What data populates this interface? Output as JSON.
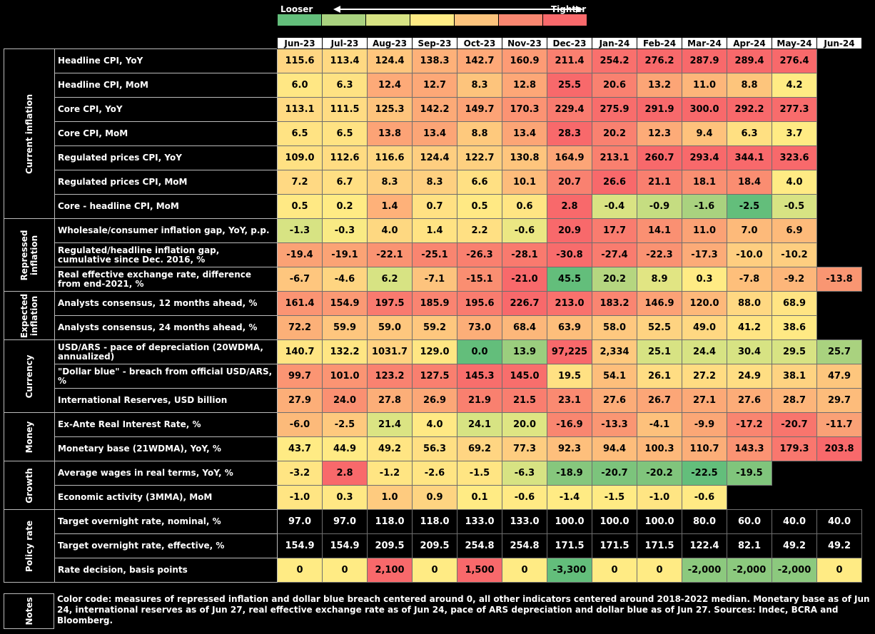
{
  "legend": {
    "looser_label": "Looser",
    "tighter_label": "Tighter",
    "colors": [
      "#63BE7B",
      "#A9D27F",
      "#D7E383",
      "#FFEB84",
      "#FCC37C",
      "#F98770",
      "#F8696B"
    ]
  },
  "months": [
    "Jun-23",
    "Jul-23",
    "Aug-23",
    "Sep-23",
    "Oct-23",
    "Nov-23",
    "Dec-23",
    "Jan-24",
    "Feb-24",
    "Mar-24",
    "Apr-24",
    "May-24",
    "Jun-24"
  ],
  "groups": [
    {
      "name": "Current inflation",
      "rows": [
        {
          "label": "Headline CPI, YoY",
          "values": [
            "115.6",
            "113.4",
            "124.4",
            "138.3",
            "142.7",
            "160.9",
            "211.4",
            "254.2",
            "276.2",
            "287.9",
            "289.4",
            "276.4",
            ""
          ],
          "colors": [
            "#FFD682",
            "#FFD982",
            "#FFC67D",
            "#FEB179",
            "#FEA978",
            "#FD9B75",
            "#FA8070",
            "#F9706D",
            "#F8696B",
            "#F8696B",
            "#F8696B",
            "#F8696B",
            "#000000"
          ]
        },
        {
          "label": "Headline CPI, MoM",
          "values": [
            "6.0",
            "6.3",
            "12.4",
            "12.7",
            "8.3",
            "12.8",
            "25.5",
            "20.6",
            "13.2",
            "11.0",
            "8.8",
            "4.2",
            ""
          ],
          "colors": [
            "#FFE784",
            "#FEE283",
            "#FDAA78",
            "#FDA877",
            "#FDC47C",
            "#FDA777",
            "#F8696B",
            "#F98170",
            "#FCA576",
            "#FDB67A",
            "#FDC57C",
            "#FFEB84",
            "#000000"
          ]
        },
        {
          "label": "Core CPI, YoY",
          "values": [
            "113.1",
            "111.5",
            "125.3",
            "142.2",
            "149.7",
            "170.3",
            "229.4",
            "275.9",
            "291.9",
            "300.0",
            "292.2",
            "277.3",
            ""
          ],
          "colors": [
            "#FFDA83",
            "#FFDC83",
            "#FEC47C",
            "#FDAA77",
            "#FDA376",
            "#FC9373",
            "#F97B6F",
            "#F86D6C",
            "#F8696B",
            "#F8696B",
            "#F8696B",
            "#F86C6C",
            "#000000"
          ]
        },
        {
          "label": "Core CPI, MoM",
          "values": [
            "6.5",
            "6.5",
            "13.8",
            "13.4",
            "8.8",
            "13.4",
            "28.3",
            "20.2",
            "12.3",
            "9.4",
            "6.3",
            "3.7",
            ""
          ],
          "colors": [
            "#FFE383",
            "#FFE383",
            "#FCA376",
            "#FCA576",
            "#FEC97D",
            "#FCA576",
            "#F8696B",
            "#F98170",
            "#FDAB78",
            "#FEC27C",
            "#FFE082",
            "#FFEB84",
            "#000000"
          ]
        },
        {
          "label": "Regulated prices CPI, YoY",
          "values": [
            "109.0",
            "112.6",
            "116.6",
            "124.4",
            "122.7",
            "130.8",
            "164.9",
            "213.1",
            "260.7",
            "293.4",
            "344.1",
            "323.6",
            ""
          ],
          "colors": [
            "#FFE183",
            "#FFDC82",
            "#FFD682",
            "#FECE80",
            "#FED080",
            "#FEC57D",
            "#FCA577",
            "#F9806F",
            "#F8696B",
            "#F8696B",
            "#F8696B",
            "#F8696B",
            "#000000"
          ]
        },
        {
          "label": "Regulated prices CPI, MoM",
          "values": [
            "7.2",
            "6.7",
            "8.3",
            "8.3",
            "6.6",
            "10.1",
            "20.7",
            "26.6",
            "21.1",
            "18.1",
            "18.4",
            "4.0",
            ""
          ],
          "colors": [
            "#FFD983",
            "#FFDF83",
            "#FED080",
            "#FED080",
            "#FFE083",
            "#FDBC7B",
            "#F98170",
            "#F8696B",
            "#F97F6F",
            "#FA8F72",
            "#FA8D71",
            "#FFEB84",
            "#000000"
          ]
        },
        {
          "label": "Core - headline CPI, MoM",
          "values": [
            "0.5",
            "0.2",
            "1.4",
            "0.7",
            "0.5",
            "0.6",
            "2.8",
            "-0.4",
            "-0.9",
            "-1.6",
            "-2.5",
            "-0.5",
            ""
          ],
          "colors": [
            "#FFE984",
            "#FFEB84",
            "#FEB179",
            "#FFE183",
            "#FFE984",
            "#FFE583",
            "#F8696B",
            "#D9E383",
            "#C5DD81",
            "#A9D27F",
            "#63BE7B",
            "#D7E383",
            "#000000"
          ]
        }
      ]
    },
    {
      "name": "Repressed\ninflation",
      "rows": [
        {
          "label": "Wholesale/consumer inflation gap, YoY, p.p.",
          "values": [
            "-1.3",
            "-0.3",
            "4.0",
            "1.4",
            "2.2",
            "-0.6",
            "20.9",
            "17.7",
            "14.1",
            "11.0",
            "7.0",
            "6.9"
          ],
          "colors": [
            "#D7E383",
            "#F9EA84",
            "#FED881",
            "#FFE383",
            "#FFE083",
            "#EBE783",
            "#F8696B",
            "#F97C6F",
            "#FA9072",
            "#FBA275",
            "#FDBA7A",
            "#FDBA7A"
          ]
        },
        {
          "label": "Regulated/headline inflation gap, cumulative since Dec. 2016, %",
          "values": [
            "-19.4",
            "-19.1",
            "-22.1",
            "-25.1",
            "-26.3",
            "-28.1",
            "-30.8",
            "-27.4",
            "-22.3",
            "-17.3",
            "-10.0",
            "-10.2"
          ],
          "colors": [
            "#FBA275",
            "#FBA375",
            "#FA9372",
            "#F98570",
            "#F9806F",
            "#F97A6E",
            "#F86C6C",
            "#F97C6F",
            "#FA9272",
            "#FCAB78",
            "#FECE80",
            "#FECE80"
          ]
        },
        {
          "label": "Real effective exchange rate, difference from end-2021, %",
          "values": [
            "-6.7",
            "-4.6",
            "6.2",
            "-7.1",
            "-15.1",
            "-21.0",
            "45.5",
            "20.2",
            "8.9",
            "0.3",
            "-7.8",
            "-9.2",
            "-13.8"
          ],
          "colors": [
            "#FEC67E",
            "#FED581",
            "#D7E383",
            "#FDC37D",
            "#FA8E71",
            "#F8696B",
            "#63BE7B",
            "#B5D680",
            "#E1E583",
            "#FFEB84",
            "#FEBF7B",
            "#FDB67A",
            "#F99672"
          ]
        }
      ]
    },
    {
      "name": "Expected\ninflation",
      "rows": [
        {
          "label": "Analysts consensus, 12 months ahead, %",
          "values": [
            "161.4",
            "154.9",
            "197.5",
            "185.9",
            "195.6",
            "226.7",
            "213.0",
            "183.2",
            "146.9",
            "120.0",
            "88.0",
            "68.9",
            ""
          ],
          "colors": [
            "#FB9473",
            "#FB9974",
            "#F97A6F",
            "#FA8471",
            "#F97C6F",
            "#F8696B",
            "#F9716D",
            "#FA8571",
            "#FCA176",
            "#FDB87A",
            "#FFD882",
            "#FFE483",
            "#000000"
          ]
        },
        {
          "label": "Analysts consensus, 24 months ahead, %",
          "values": [
            "72.2",
            "59.9",
            "59.0",
            "59.2",
            "73.0",
            "68.4",
            "63.9",
            "58.0",
            "52.5",
            "49.0",
            "41.2",
            "38.6",
            ""
          ],
          "colors": [
            "#FCB078",
            "#FEC67E",
            "#FEC77E",
            "#FEC77E",
            "#FCAE78",
            "#FCB77A",
            "#FDBE7B",
            "#FEC87F",
            "#FED381",
            "#FFD882",
            "#FFE483",
            "#FFE984",
            "#000000"
          ]
        }
      ]
    },
    {
      "name": "Currency",
      "rows": [
        {
          "label": "USD/ARS - pace of depreciation (20WDMA, annualized)",
          "values": [
            "140.7",
            "132.2",
            "1031.7",
            "129.0",
            "0.0",
            "13.9",
            "97,225",
            "2,334",
            "25.1",
            "24.4",
            "30.4",
            "29.5",
            "25.7"
          ],
          "colors": [
            "#FFE583",
            "#FFE683",
            "#FFD281",
            "#FFE683",
            "#63BE7B",
            "#9BCE7E",
            "#F8696B",
            "#FEC97E",
            "#D7E383",
            "#D7E383",
            "#D7E383",
            "#D7E383",
            "#A9D27F"
          ]
        },
        {
          "label": "\"Dollar blue\" - breach from official USD/ARS, %",
          "values": [
            "99.7",
            "101.0",
            "123.2",
            "127.5",
            "145.3",
            "145.0",
            "19.5",
            "54.1",
            "26.1",
            "27.2",
            "24.9",
            "38.1",
            "47.9"
          ],
          "colors": [
            "#FB9573",
            "#FB9473",
            "#F98270",
            "#F97F6F",
            "#F86E6C",
            "#F86E6C",
            "#FFE183",
            "#FDBE7B",
            "#FFDD83",
            "#FFDC82",
            "#FFDE83",
            "#FED381",
            "#FDC67D"
          ]
        },
        {
          "label": "International Reserves, USD billion",
          "values": [
            "27.9",
            "24.0",
            "27.8",
            "26.9",
            "21.9",
            "21.5",
            "23.1",
            "27.6",
            "26.7",
            "27.1",
            "27.6",
            "28.7",
            "29.7"
          ],
          "colors": [
            "#FCAE78",
            "#FA9072",
            "#FCAE78",
            "#FCA777",
            "#F9806F",
            "#F97E6F",
            "#FA8A71",
            "#FCAC78",
            "#FCA677",
            "#FCA977",
            "#FCAC78",
            "#FDB57A",
            "#FDBC7B"
          ]
        }
      ]
    },
    {
      "name": "Money",
      "rows": [
        {
          "label": "Ex-Ante Real Interest Rate, %",
          "values": [
            "-6.0",
            "-2.5",
            "21.4",
            "4.0",
            "24.1",
            "20.0",
            "-16.9",
            "-13.3",
            "-4.1",
            "-9.9",
            "-17.2",
            "-20.7",
            "-11.7"
          ],
          "colors": [
            "#FCBA7A",
            "#FEC97E",
            "#DBE483",
            "#FFE984",
            "#D7E383",
            "#DEE583",
            "#F98670",
            "#FA9673",
            "#FDC17C",
            "#FBA776",
            "#F98570",
            "#F8756D",
            "#FAA176"
          ]
        },
        {
          "label": "Monetary base (21WDMA), YoY, %",
          "values": [
            "43.7",
            "44.9",
            "49.2",
            "56.3",
            "69.2",
            "77.3",
            "92.3",
            "94.4",
            "100.3",
            "110.7",
            "143.3",
            "179.3",
            "203.8"
          ],
          "colors": [
            "#FFEB84",
            "#FFEA84",
            "#FFE583",
            "#FFDF83",
            "#FFD582",
            "#FECD80",
            "#FEBF7C",
            "#FDBD7B",
            "#FDB87A",
            "#FCAE78",
            "#FB9373",
            "#F9776E",
            "#F8696B"
          ]
        }
      ]
    },
    {
      "name": "Growth",
      "rows": [
        {
          "label": "Average wages in real terms, YoY, %",
          "values": [
            "-3.2",
            "2.8",
            "-1.2",
            "-2.6",
            "-1.5",
            "-6.3",
            "-18.9",
            "-20.7",
            "-20.2",
            "-22.5",
            "-19.5",
            "",
            ""
          ],
          "colors": [
            "#FFE583",
            "#F8696B",
            "#FFE583",
            "#FFE583",
            "#FFE583",
            "#D7E383",
            "#86C77D",
            "#7CC47C",
            "#80C57C",
            "#63BE7B",
            "#80C57C",
            "#000000",
            "#000000"
          ]
        },
        {
          "label": "Economic activity (3MMA), MoM",
          "values": [
            "-1.0",
            "0.3",
            "1.0",
            "0.9",
            "0.1",
            "-0.6",
            "-1.4",
            "-1.5",
            "-1.0",
            "-0.6",
            "",
            "",
            ""
          ],
          "colors": [
            "#FFE583",
            "#FFE884",
            "#FECB7F",
            "#FED481",
            "#FFEB84",
            "#FFEA84",
            "#FFEB84",
            "#FFEB84",
            "#FFE583",
            "#FFEA84",
            "#000000",
            "#000000",
            "#000000"
          ]
        }
      ]
    },
    {
      "name": "Policy rate",
      "rows": [
        {
          "label": "Target overnight rate, nominal, %",
          "values": [
            "97.0",
            "97.0",
            "118.0",
            "118.0",
            "133.0",
            "133.0",
            "100.0",
            "100.0",
            "100.0",
            "80.0",
            "60.0",
            "40.0",
            "40.0"
          ],
          "colors": [
            "#000000",
            "#000000",
            "#000000",
            "#000000",
            "#000000",
            "#000000",
            "#000000",
            "#000000",
            "#000000",
            "#000000",
            "#000000",
            "#000000",
            "#000000"
          ],
          "text_color": "#ffffff"
        },
        {
          "label": "Target overnight rate, effective, %",
          "values": [
            "154.9",
            "154.9",
            "209.5",
            "209.5",
            "254.8",
            "254.8",
            "171.5",
            "171.5",
            "171.5",
            "122.4",
            "82.1",
            "49.2",
            "49.2"
          ],
          "colors": [
            "#000000",
            "#000000",
            "#000000",
            "#000000",
            "#000000",
            "#000000",
            "#000000",
            "#000000",
            "#000000",
            "#000000",
            "#000000",
            "#000000",
            "#000000"
          ],
          "text_color": "#ffffff"
        },
        {
          "label": "Rate decision, basis points",
          "values": [
            "0",
            "0",
            "2,100",
            "0",
            "1,500",
            "0",
            "-3,300",
            "0",
            "0",
            "-2,000",
            "-2,000",
            "-2,000",
            "0"
          ],
          "colors": [
            "#FFEB84",
            "#FFEB84",
            "#F8696B",
            "#FFEB84",
            "#F8696B",
            "#FFEB84",
            "#63BE7B",
            "#FFEB84",
            "#FFEB84",
            "#8CC97E",
            "#8CC97E",
            "#8CC97E",
            "#FFEB84"
          ]
        }
      ]
    }
  ],
  "notes": {
    "label": "Notes",
    "text": "Color code: measures of repressed inflation and dollar blue breach centered around 0, all other indicators centered around 2018-2022 median. Monetary base as of Jun 24, international reserves as of Jun 27, real effective exchange rate as of Jun 24, pace of ARS depreciation and dollar blue as of Jun 27. Sources: Indec, BCRA and Bloomberg."
  }
}
